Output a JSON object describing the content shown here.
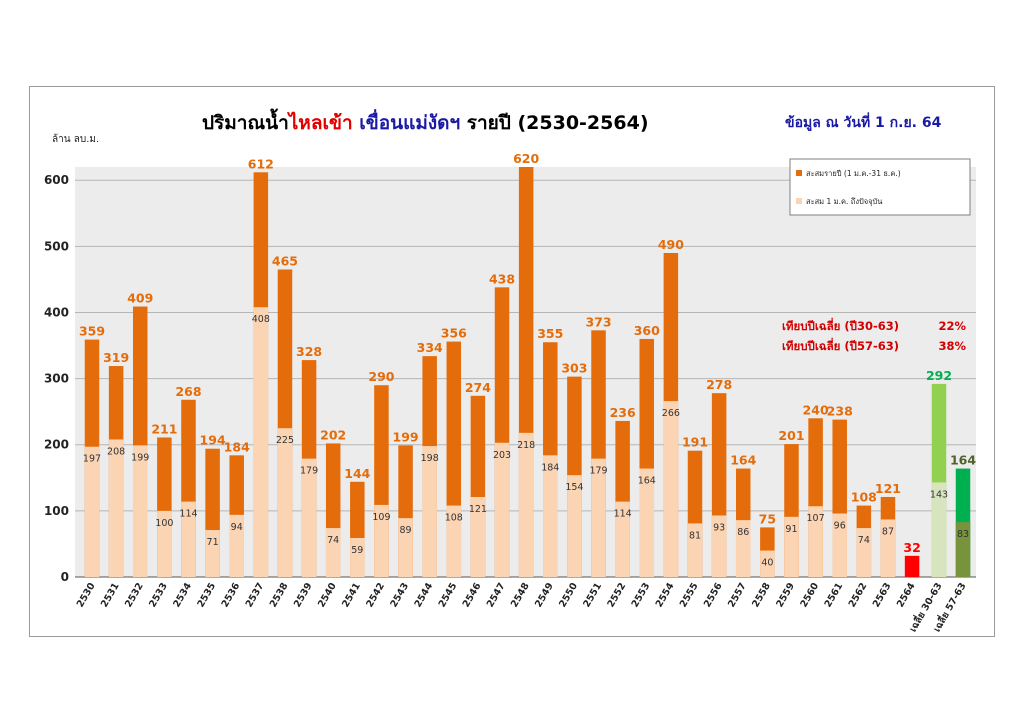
{
  "colors": {
    "annual": "#e46c0a",
    "to_date": "#fbd4b4",
    "current_year": "#ff0000",
    "avg30_total": "#92d050",
    "avg30_todate": "#d7e4bd",
    "avg57_total": "#00b050",
    "avg57_todate": "#77933c",
    "label_orange": "#e46c0a",
    "label_green": "#00b050",
    "label_dkgreen": "#4f6228",
    "plot_bg": "#ececec"
  },
  "chart_data": {
    "type": "bar",
    "title_parts": [
      {
        "text": "ปริมาณน้ำ",
        "color": "#000000"
      },
      {
        "text": "ไหลเข้า",
        "color": "#e00000"
      },
      {
        "text": " ",
        "color": "#000000"
      },
      {
        "text": "เขื่อนแม่งัดฯ",
        "color": "#1a1aa6"
      },
      {
        "text": " รายปี  (2530-2564)",
        "color": "#000000"
      }
    ],
    "date_note": "ข้อมูล ณ วันที่   1 ก.ย. 64",
    "ylabel": "ล้าน ลบ.ม.",
    "ylim": [
      0,
      620
    ],
    "yticks": [
      0,
      100,
      200,
      300,
      400,
      500,
      600
    ],
    "grid": true,
    "legend_position": "top-right",
    "series": [
      {
        "name": "สะสมรายปี (1 ม.ค.-31 ธ.ค.)",
        "color": "#e46c0a"
      },
      {
        "name": "สะสม 1 ม.ค. ถึงปัจจุบัน",
        "color": "#fbd4b4"
      }
    ],
    "categories": [
      "2530",
      "2531",
      "2532",
      "2533",
      "2534",
      "2535",
      "2536",
      "2537",
      "2538",
      "2539",
      "2540",
      "2541",
      "2542",
      "2543",
      "2544",
      "2545",
      "2546",
      "2547",
      "2548",
      "2549",
      "2550",
      "2551",
      "2552",
      "2553",
      "2554",
      "2555",
      "2556",
      "2557",
      "2558",
      "2559",
      "2560",
      "2561",
      "2562",
      "2563",
      "2564",
      "เฉลี่ย 30-63",
      "เฉลี่ย 57-63"
    ],
    "annual_totals": [
      359,
      319,
      409,
      211,
      268,
      194,
      184,
      612,
      465,
      328,
      202,
      144,
      290,
      199,
      334,
      356,
      274,
      438,
      620,
      355,
      303,
      373,
      236,
      360,
      490,
      191,
      278,
      164,
      75,
      201,
      240,
      238,
      108,
      121,
      32,
      292,
      164
    ],
    "to_date_values": [
      197,
      208,
      199,
      100,
      114,
      71,
      94,
      408,
      225,
      179,
      74,
      59,
      109,
      89,
      198,
      108,
      121,
      203,
      218,
      184,
      154,
      179,
      114,
      164,
      266,
      81,
      93,
      86,
      40,
      91,
      107,
      96,
      74,
      87,
      null,
      143,
      83
    ],
    "comparisons": [
      {
        "label": "เทียบปีเฉลี่ย (ปี30-63)",
        "value": "22%"
      },
      {
        "label": "เทียบปีเฉลี่ย (ปี57-63)",
        "value": "38%"
      }
    ]
  }
}
